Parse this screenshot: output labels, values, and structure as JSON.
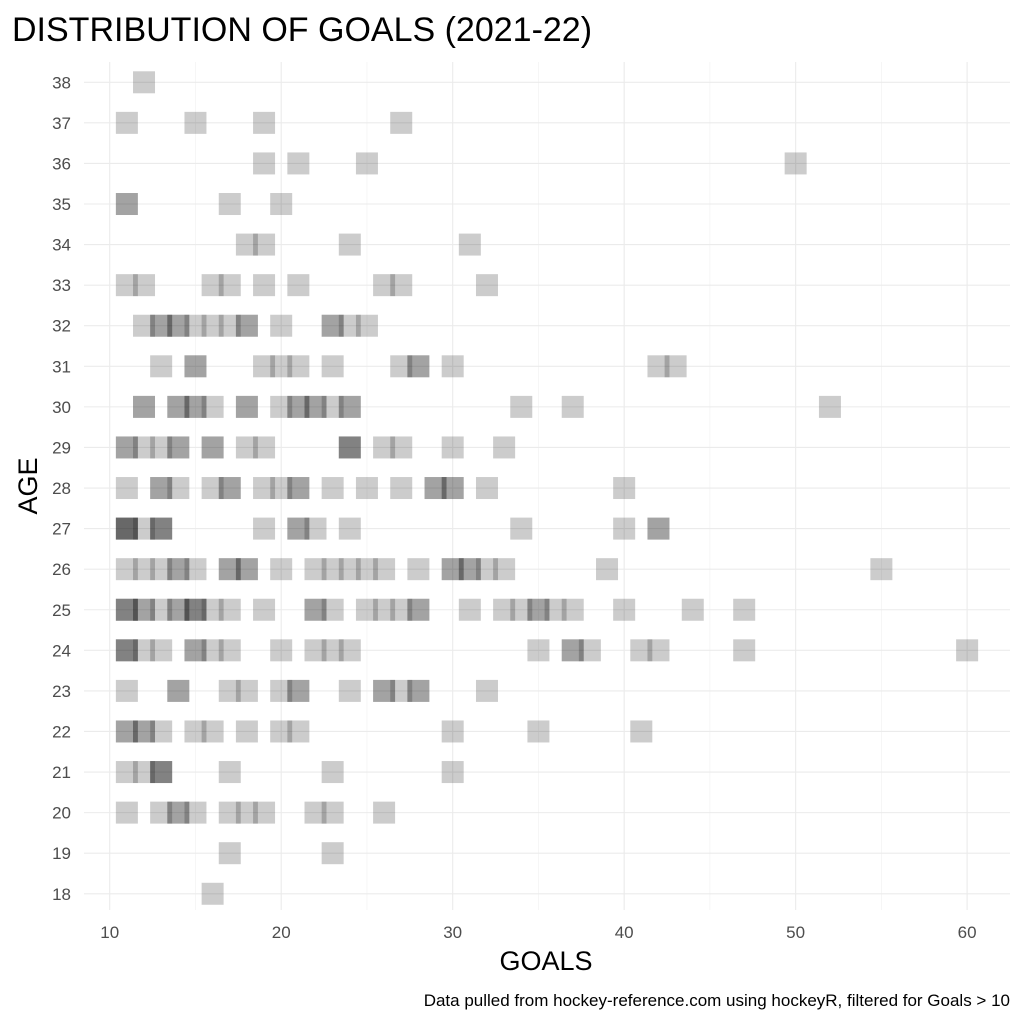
{
  "chart_data": {
    "type": "scatter",
    "title": "DISTRIBUTION OF GOALS (2021-22)",
    "xlabel": "GOALS",
    "ylabel": "AGE",
    "caption": "Data pulled from hockey-reference.com using hockeyR, filtered for Goals > 10",
    "xlim": [
      8.5,
      62.5
    ],
    "ylim": [
      17.6,
      38.5
    ],
    "x_ticks": [
      10,
      20,
      30,
      40,
      50,
      60
    ],
    "y_ticks": [
      18,
      19,
      20,
      21,
      22,
      23,
      24,
      25,
      26,
      27,
      28,
      29,
      30,
      31,
      32,
      33,
      34,
      35,
      36,
      37,
      38
    ],
    "grid": true,
    "legend": "none",
    "marker": "square",
    "marker_color": "#000000",
    "marker_opacity": 0.2,
    "points": [
      [
        12,
        38
      ],
      [
        11,
        37
      ],
      [
        15,
        37
      ],
      [
        19,
        37
      ],
      [
        27,
        37
      ],
      [
        19,
        36
      ],
      [
        21,
        36
      ],
      [
        25,
        36
      ],
      [
        50,
        36
      ],
      [
        11,
        35
      ],
      [
        11,
        35
      ],
      [
        17,
        35
      ],
      [
        20,
        35
      ],
      [
        18,
        34
      ],
      [
        19,
        34
      ],
      [
        24,
        34
      ],
      [
        31,
        34
      ],
      [
        11,
        33
      ],
      [
        12,
        33
      ],
      [
        16,
        33
      ],
      [
        17,
        33
      ],
      [
        19,
        33
      ],
      [
        21,
        33
      ],
      [
        26,
        33
      ],
      [
        27,
        33
      ],
      [
        32,
        33
      ],
      [
        12,
        32
      ],
      [
        13,
        32
      ],
      [
        13,
        32
      ],
      [
        14,
        32
      ],
      [
        14,
        32
      ],
      [
        15,
        32
      ],
      [
        16,
        32
      ],
      [
        17,
        32
      ],
      [
        18,
        32
      ],
      [
        18,
        32
      ],
      [
        20,
        32
      ],
      [
        23,
        32
      ],
      [
        23,
        32
      ],
      [
        24,
        32
      ],
      [
        25,
        32
      ],
      [
        13,
        31
      ],
      [
        15,
        31
      ],
      [
        15,
        31
      ],
      [
        19,
        31
      ],
      [
        20,
        31
      ],
      [
        21,
        31
      ],
      [
        23,
        31
      ],
      [
        27,
        31
      ],
      [
        28,
        31
      ],
      [
        28,
        31
      ],
      [
        30,
        31
      ],
      [
        42,
        31
      ],
      [
        43,
        31
      ],
      [
        12,
        30
      ],
      [
        12,
        30
      ],
      [
        14,
        30
      ],
      [
        14,
        30
      ],
      [
        15,
        30
      ],
      [
        15,
        30
      ],
      [
        16,
        30
      ],
      [
        18,
        30
      ],
      [
        18,
        30
      ],
      [
        20,
        30
      ],
      [
        21,
        30
      ],
      [
        21,
        30
      ],
      [
        22,
        30
      ],
      [
        22,
        30
      ],
      [
        23,
        30
      ],
      [
        24,
        30
      ],
      [
        24,
        30
      ],
      [
        34,
        30
      ],
      [
        37,
        30
      ],
      [
        52,
        30
      ],
      [
        11,
        29
      ],
      [
        11,
        29
      ],
      [
        12,
        29
      ],
      [
        13,
        29
      ],
      [
        14,
        29
      ],
      [
        14,
        29
      ],
      [
        16,
        29
      ],
      [
        16,
        29
      ],
      [
        18,
        29
      ],
      [
        19,
        29
      ],
      [
        24,
        29
      ],
      [
        24,
        29
      ],
      [
        24,
        29
      ],
      [
        26,
        29
      ],
      [
        27,
        29
      ],
      [
        30,
        29
      ],
      [
        33,
        29
      ],
      [
        11,
        28
      ],
      [
        13,
        28
      ],
      [
        13,
        28
      ],
      [
        14,
        28
      ],
      [
        16,
        28
      ],
      [
        17,
        28
      ],
      [
        17,
        28
      ],
      [
        19,
        28
      ],
      [
        20,
        28
      ],
      [
        21,
        28
      ],
      [
        21,
        28
      ],
      [
        23,
        28
      ],
      [
        25,
        28
      ],
      [
        27,
        28
      ],
      [
        29,
        28
      ],
      [
        29,
        28
      ],
      [
        30,
        28
      ],
      [
        30,
        28
      ],
      [
        32,
        28
      ],
      [
        40,
        28
      ],
      [
        11,
        27
      ],
      [
        11,
        27
      ],
      [
        11,
        27
      ],
      [
        11,
        27
      ],
      [
        12,
        27
      ],
      [
        13,
        27
      ],
      [
        13,
        27
      ],
      [
        13,
        27
      ],
      [
        19,
        27
      ],
      [
        21,
        27
      ],
      [
        21,
        27
      ],
      [
        22,
        27
      ],
      [
        24,
        27
      ],
      [
        34,
        27
      ],
      [
        40,
        27
      ],
      [
        42,
        27
      ],
      [
        42,
        27
      ],
      [
        11,
        26
      ],
      [
        12,
        26
      ],
      [
        13,
        26
      ],
      [
        14,
        26
      ],
      [
        14,
        26
      ],
      [
        15,
        26
      ],
      [
        17,
        26
      ],
      [
        17,
        26
      ],
      [
        18,
        26
      ],
      [
        18,
        26
      ],
      [
        20,
        26
      ],
      [
        22,
        26
      ],
      [
        23,
        26
      ],
      [
        24,
        26
      ],
      [
        25,
        26
      ],
      [
        26,
        26
      ],
      [
        28,
        26
      ],
      [
        30,
        26
      ],
      [
        30,
        26
      ],
      [
        31,
        26
      ],
      [
        31,
        26
      ],
      [
        32,
        26
      ],
      [
        33,
        26
      ],
      [
        39,
        26
      ],
      [
        55,
        26
      ],
      [
        11,
        25
      ],
      [
        11,
        25
      ],
      [
        11,
        25
      ],
      [
        12,
        25
      ],
      [
        12,
        25
      ],
      [
        13,
        25
      ],
      [
        14,
        25
      ],
      [
        14,
        25
      ],
      [
        15,
        25
      ],
      [
        15,
        25
      ],
      [
        15,
        25
      ],
      [
        16,
        25
      ],
      [
        17,
        25
      ],
      [
        19,
        25
      ],
      [
        22,
        25
      ],
      [
        22,
        25
      ],
      [
        23,
        25
      ],
      [
        25,
        25
      ],
      [
        26,
        25
      ],
      [
        27,
        25
      ],
      [
        28,
        25
      ],
      [
        28,
        25
      ],
      [
        31,
        25
      ],
      [
        33,
        25
      ],
      [
        34,
        25
      ],
      [
        35,
        25
      ],
      [
        35,
        25
      ],
      [
        36,
        25
      ],
      [
        37,
        25
      ],
      [
        40,
        25
      ],
      [
        44,
        25
      ],
      [
        47,
        25
      ],
      [
        11,
        24
      ],
      [
        11,
        24
      ],
      [
        11,
        24
      ],
      [
        12,
        24
      ],
      [
        13,
        24
      ],
      [
        15,
        24
      ],
      [
        15,
        24
      ],
      [
        16,
        24
      ],
      [
        17,
        24
      ],
      [
        20,
        24
      ],
      [
        22,
        24
      ],
      [
        23,
        24
      ],
      [
        24,
        24
      ],
      [
        35,
        24
      ],
      [
        37,
        24
      ],
      [
        37,
        24
      ],
      [
        38,
        24
      ],
      [
        41,
        24
      ],
      [
        42,
        24
      ],
      [
        47,
        24
      ],
      [
        60,
        24
      ],
      [
        11,
        23
      ],
      [
        14,
        23
      ],
      [
        14,
        23
      ],
      [
        17,
        23
      ],
      [
        18,
        23
      ],
      [
        20,
        23
      ],
      [
        21,
        23
      ],
      [
        21,
        23
      ],
      [
        24,
        23
      ],
      [
        26,
        23
      ],
      [
        26,
        23
      ],
      [
        27,
        23
      ],
      [
        28,
        23
      ],
      [
        28,
        23
      ],
      [
        32,
        23
      ],
      [
        11,
        22
      ],
      [
        11,
        22
      ],
      [
        12,
        22
      ],
      [
        12,
        22
      ],
      [
        13,
        22
      ],
      [
        15,
        22
      ],
      [
        16,
        22
      ],
      [
        18,
        22
      ],
      [
        20,
        22
      ],
      [
        21,
        22
      ],
      [
        30,
        22
      ],
      [
        35,
        22
      ],
      [
        41,
        22
      ],
      [
        11,
        21
      ],
      [
        12,
        21
      ],
      [
        13,
        21
      ],
      [
        13,
        21
      ],
      [
        13,
        21
      ],
      [
        17,
        21
      ],
      [
        23,
        21
      ],
      [
        30,
        21
      ],
      [
        11,
        20
      ],
      [
        13,
        20
      ],
      [
        14,
        20
      ],
      [
        14,
        20
      ],
      [
        15,
        20
      ],
      [
        17,
        20
      ],
      [
        18,
        20
      ],
      [
        19,
        20
      ],
      [
        22,
        20
      ],
      [
        23,
        20
      ],
      [
        26,
        20
      ],
      [
        17,
        19
      ],
      [
        23,
        19
      ],
      [
        16,
        18
      ]
    ]
  }
}
